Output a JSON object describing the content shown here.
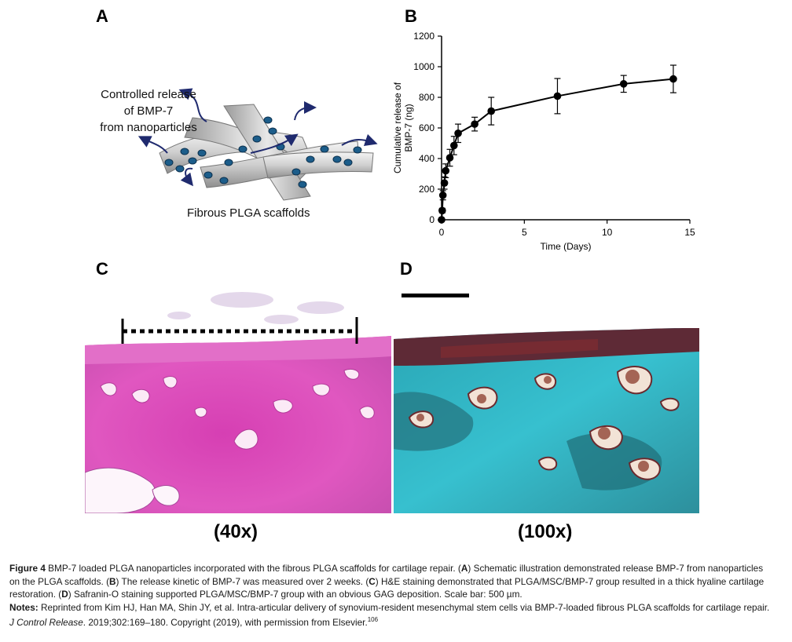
{
  "panels": {
    "a": {
      "letter": "A",
      "release_text_1": "Controlled release",
      "release_text_2": "of BMP-7",
      "release_text_3": "from nanoparticles",
      "scaffold_label": "Fibrous PLGA scaffolds"
    },
    "b": {
      "letter": "B"
    },
    "c": {
      "letter": "C",
      "magnification": "(40x)"
    },
    "d": {
      "letter": "D",
      "magnification": "(100x)"
    }
  },
  "chart_data": {
    "type": "line",
    "xlabel": "Time (Days)",
    "ylabel_line1": "Cumulative release of",
    "ylabel_line2": "BMP-7 (ng)",
    "xlim": [
      0,
      15
    ],
    "ylim": [
      0,
      1200
    ],
    "xticks": [
      0,
      5,
      10,
      15
    ],
    "yticks": [
      0,
      200,
      400,
      600,
      800,
      1000,
      1200
    ],
    "grid": false,
    "series": [
      {
        "x": [
          0,
          0.04,
          0.08,
          0.17,
          0.25,
          0.5,
          0.75,
          1,
          2,
          3,
          7,
          11,
          14
        ],
        "y": [
          0,
          60,
          160,
          240,
          320,
          405,
          485,
          565,
          625,
          710,
          808,
          888,
          920
        ],
        "err": [
          5,
          15,
          30,
          40,
          45,
          55,
          60,
          60,
          45,
          90,
          115,
          55,
          90
        ]
      }
    ]
  },
  "caption": {
    "figure_label": "Figure 4",
    "figure_text": " BMP-7 loaded PLGA nanoparticles incorporated with the fibrous PLGA scaffolds for cartilage repair. (",
    "a_ref": "A",
    "a_text": ") Schematic illustration demonstrated release BMP-7 from nanoparticles on the PLGA scaffolds. (",
    "b_ref": "B",
    "b_text": ") The release kinetic of BMP-7 was measured over 2 weeks. (",
    "c_ref": "C",
    "c_text": ") H&E staining demonstrated that PLGA/MSC/BMP-7 group resulted in a thick hyaline cartilage restoration. (",
    "d_ref": "D",
    "d_text": ") Safranin-O staining supported PLGA/MSC/BMP-7 group with an obvious GAG deposition. Scale bar: 500 µm.",
    "notes_label": "Notes:",
    "notes_text": " Reprinted from Kim HJ, Han MA, Shin JY, et al. Intra-articular delivery of synovium-resident mesenchymal stem cells via BMP-7-loaded fibrous PLGA scaffolds for cartilage repair. ",
    "journal": "J Control Release",
    "citation_text": ". 2019;302:169–180. Copyright (2019), with permission from Elsevier.",
    "ref_number": "106"
  }
}
